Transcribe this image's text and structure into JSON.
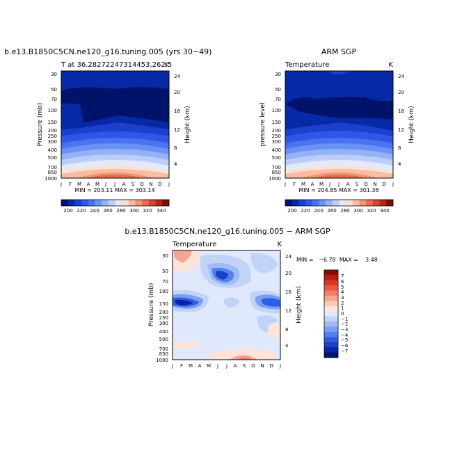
{
  "chart_data": [
    {
      "type": "heatmap",
      "title": "b.e13.B1850C5CN.ne120_g16.tuning.005 (yrs 30−49)",
      "subtitle_left": "T at 36.28272247314453,262.5",
      "subtitle_right": "K",
      "ylabel": "Pressure (mb)",
      "ylabel_right": "Height (km)",
      "months": [
        "J",
        "F",
        "M",
        "A",
        "M",
        "J",
        "J",
        "A",
        "S",
        "O",
        "N",
        "D",
        "J"
      ],
      "pressure_ticks": [
        30,
        50,
        70,
        100,
        150,
        200,
        250,
        300,
        400,
        500,
        700,
        850,
        1000
      ],
      "height_ticks": [
        4,
        8,
        12,
        16,
        20,
        24
      ],
      "min_max_text": "MIN = 203.11  MAX = 303.14",
      "min": 203.11,
      "max": 303.14
    },
    {
      "type": "heatmap",
      "title": "ARM SGP",
      "subtitle_left": "Temperature",
      "subtitle_right": "K",
      "ylabel": "pressure level",
      "ylabel_right": "Height (km)",
      "months": [
        "J",
        "F",
        "M",
        "A",
        "M",
        "J",
        "J",
        "A",
        "S",
        "O",
        "N",
        "D",
        "J"
      ],
      "pressure_ticks": [
        30,
        50,
        70,
        100,
        150,
        200,
        250,
        300,
        400,
        500,
        700,
        850,
        1000
      ],
      "height_ticks": [
        4,
        8,
        12,
        16,
        20,
        24
      ],
      "min_max_text": "MIN = 204.85  MAX = 301.38",
      "min": 204.85,
      "max": 301.38
    },
    {
      "type": "heatmap",
      "title": "b.e13.B1850C5CN.ne120_g16.tuning.005 − ARM SGP",
      "subtitle_left": "Temperature",
      "subtitle_right": "K",
      "ylabel": "Pressure (mb)",
      "ylabel_right": "Height (km)",
      "months": [
        "J",
        "F",
        "M",
        "A",
        "M",
        "J",
        "J",
        "A",
        "S",
        "O",
        "N",
        "D",
        "J"
      ],
      "pressure_ticks": [
        30,
        50,
        70,
        100,
        150,
        200,
        250,
        300,
        400,
        500,
        700,
        850,
        1000
      ],
      "height_ticks": [
        4,
        8,
        12,
        16,
        20,
        24
      ],
      "min_max_text": "MIN =   −6.78  MAX =    3.48",
      "min": -6.78,
      "max": 3.48
    }
  ],
  "colorbar_abs": {
    "labels": [
      "200",
      "220",
      "240",
      "260",
      "280",
      "300",
      "320",
      "340"
    ],
    "colors": [
      "#00136a",
      "#0629a8",
      "#1c3fcd",
      "#2f56e6",
      "#4a73f0",
      "#6a92f5",
      "#93b3f7",
      "#bccef8",
      "#e2e9f9",
      "#fde0d2",
      "#f8bca2",
      "#f29473",
      "#e96a4c",
      "#d8432e",
      "#b5241a",
      "#7c0d0a"
    ]
  },
  "colorbar_diff": {
    "labels": [
      "7",
      "6",
      "5",
      "4",
      "3",
      "2",
      "1",
      "0",
      "−1",
      "−2",
      "−3",
      "−4",
      "−5",
      "−6",
      "−7"
    ],
    "colors": [
      "#8a0b08",
      "#b81e14",
      "#d8382a",
      "#ea5a42",
      "#f2806a",
      "#f6a58f",
      "#fac7b6",
      "#fde3d8",
      "#dfe9fb",
      "#c1d4f8",
      "#9ebbf5",
      "#7a9ef2",
      "#5380ee",
      "#2f5ee6",
      "#1a40c8",
      "#0a25a0",
      "#00136a"
    ]
  }
}
